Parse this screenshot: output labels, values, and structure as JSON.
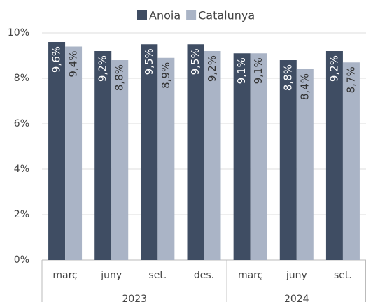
{
  "chart_data": {
    "type": "bar",
    "categories": [
      "març",
      "juny",
      "set.",
      "des.",
      "març",
      "juny",
      "set."
    ],
    "groups": [
      {
        "label": "2023",
        "count": 4
      },
      {
        "label": "2024",
        "count": 3
      }
    ],
    "series": [
      {
        "name": "Anoia",
        "color": "#3f4d63",
        "values": [
          9.6,
          9.2,
          9.5,
          9.5,
          9.1,
          8.8,
          9.2
        ],
        "value_labels": [
          "9,6%",
          "9,2%",
          "9,5%",
          "9,5%",
          "9,1%",
          "8,8%",
          "9,2%"
        ]
      },
      {
        "name": "Catalunya",
        "color": "#aab4c6",
        "values": [
          9.4,
          8.8,
          8.9,
          9.2,
          9.1,
          8.4,
          8.7
        ],
        "value_labels": [
          "9,4%",
          "8,8%",
          "8,9%",
          "9,2%",
          "9,1%",
          "8,4%",
          "8,7%"
        ]
      }
    ],
    "ylim": [
      0,
      10
    ],
    "yticks": [
      {
        "value": 0,
        "label": "0%"
      },
      {
        "value": 2,
        "label": "2%"
      },
      {
        "value": 4,
        "label": "4%"
      },
      {
        "value": 6,
        "label": "6%"
      },
      {
        "value": 8,
        "label": "8%"
      },
      {
        "value": 10,
        "label": "10%"
      }
    ],
    "grid": true,
    "legend": "top"
  }
}
